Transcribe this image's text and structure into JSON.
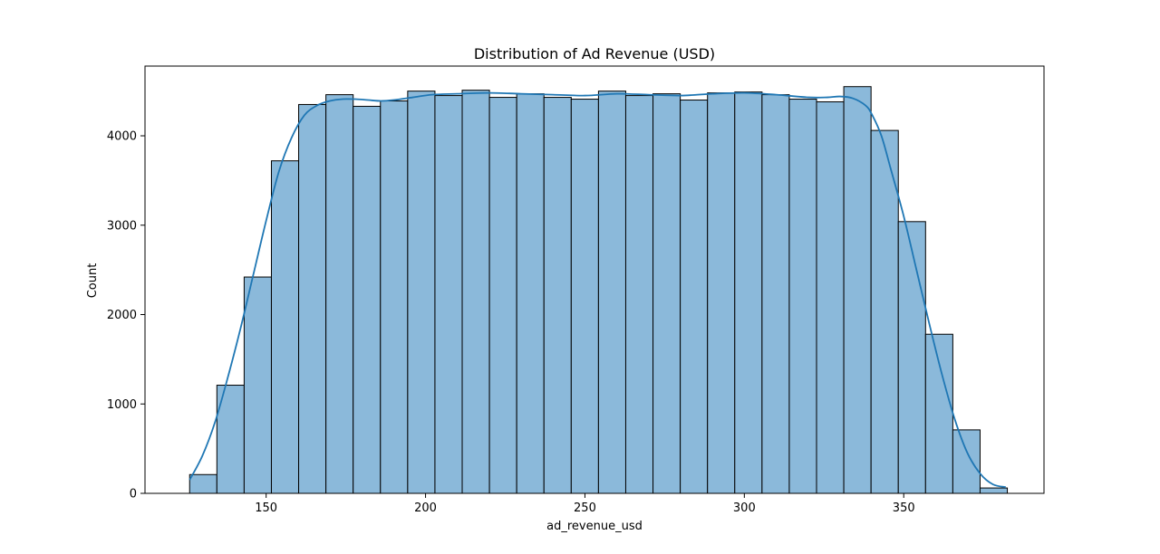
{
  "chart_data": {
    "type": "bar",
    "title": "Distribution of Ad Revenue (USD)",
    "xlabel": "ad_revenue_usd",
    "ylabel": "Count",
    "xlim": [
      112,
      394
    ],
    "ylim": [
      0,
      4780
    ],
    "x_ticks": [
      150,
      200,
      250,
      300,
      350
    ],
    "y_ticks": [
      0,
      1000,
      2000,
      3000,
      4000
    ],
    "bin_edges": [
      126.0,
      134.55,
      143.1,
      151.65,
      160.2,
      168.75,
      177.3,
      185.85,
      194.4,
      202.95,
      211.5,
      220.05,
      228.6,
      237.15,
      245.7,
      254.25,
      262.8,
      271.35,
      279.9,
      288.45,
      297.0,
      305.55,
      314.1,
      322.65,
      331.2,
      339.75,
      348.3,
      356.85,
      365.4,
      373.95,
      382.5
    ],
    "counts": [
      210,
      1210,
      2420,
      3720,
      4350,
      4460,
      4330,
      4390,
      4500,
      4450,
      4510,
      4430,
      4470,
      4430,
      4410,
      4500,
      4450,
      4470,
      4400,
      4480,
      4490,
      4460,
      4410,
      4380,
      4550,
      4060,
      3040,
      1780,
      710,
      60
    ],
    "kde": {
      "x": [
        126,
        130,
        134,
        138,
        142,
        146,
        150,
        154,
        158,
        162,
        166,
        170,
        174,
        178,
        182,
        186,
        190,
        196,
        202,
        210,
        220,
        230,
        240,
        250,
        260,
        270,
        280,
        290,
        300,
        310,
        320,
        326,
        330,
        334,
        338,
        340,
        343,
        346,
        350,
        354,
        358,
        362,
        366,
        370,
        374,
        378,
        382
      ],
      "y": [
        150,
        420,
        800,
        1300,
        1850,
        2450,
        3050,
        3600,
        3980,
        4230,
        4340,
        4390,
        4410,
        4410,
        4400,
        4390,
        4400,
        4430,
        4460,
        4470,
        4480,
        4470,
        4460,
        4450,
        4470,
        4460,
        4450,
        4470,
        4480,
        4460,
        4430,
        4430,
        4440,
        4420,
        4340,
        4240,
        4000,
        3620,
        3100,
        2500,
        1900,
        1330,
        830,
        450,
        220,
        100,
        70
      ]
    },
    "colors": {
      "bar_fill": "#8bb9da",
      "bar_edge": "#000000",
      "kde_line": "#1f77b4"
    },
    "grid": false,
    "legend": "none"
  }
}
